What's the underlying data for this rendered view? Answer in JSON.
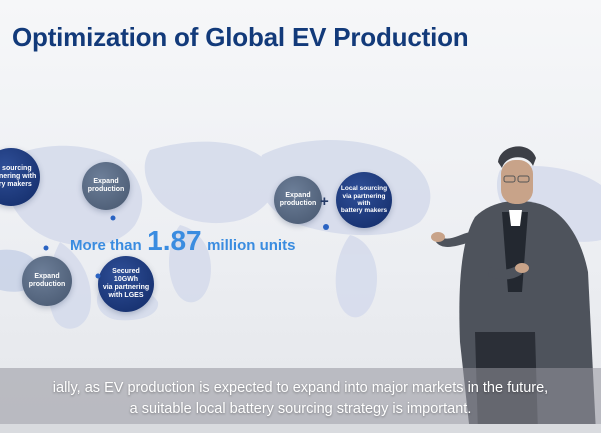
{
  "slide": {
    "title": "Optimization of Global EV Production",
    "headline": {
      "prefix": "More than",
      "number": "1.87",
      "suffix": "million units"
    },
    "bubbles": {
      "left_cut": "cal sourcing\npartnering with\nttery makers",
      "asia_expand": "Expand\nproduction",
      "sea_expand": "Expand\nproduction",
      "lges": "Secured\n10GWh\nvia partnering\nwith LGES",
      "us_expand": "Expand\nproduction",
      "us_sourcing": "Local sourcing\nvia partnering with\nbattery makers"
    },
    "plus_sign": "+"
  },
  "subtitle": {
    "line1": "ially, as EV production is expected to expand into major markets in the future,",
    "line2": "a suitable local battery sourcing strategy is important."
  },
  "colors": {
    "title": "#123a7a",
    "accent_blue": "#3a8ce0",
    "bubble_dark": "#1a3577",
    "bubble_gray": "#56667e"
  }
}
